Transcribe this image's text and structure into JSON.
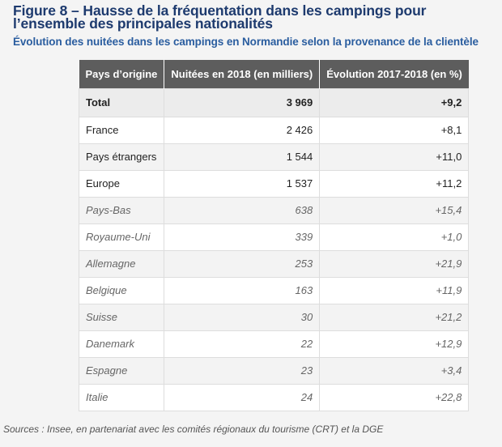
{
  "figure": {
    "title": "Figure 8 – Hausse de la fréquentation dans les campings pour l’ensemble des principales nationalités",
    "subtitle": "Évolution des nuitées dans les campings en Normandie selon la provenance de la clientèle"
  },
  "table": {
    "headers": [
      "Pays d’origine",
      "Nuitées en 2018 (en milliers)",
      "Évolution 2017-2018 (en %)"
    ],
    "rows": [
      {
        "origin": "Total",
        "nights": "3 969",
        "evolution": "+9,2"
      },
      {
        "origin": "France",
        "nights": "2 426",
        "evolution": "+8,1"
      },
      {
        "origin": "Pays étrangers",
        "nights": "1 544",
        "evolution": "+11,0"
      },
      {
        "origin": "Europe",
        "nights": "1 537",
        "evolution": "+11,2"
      },
      {
        "origin": "Pays-Bas",
        "nights": "638",
        "evolution": "+15,4"
      },
      {
        "origin": "Royaume-Uni",
        "nights": "339",
        "evolution": "+1,0"
      },
      {
        "origin": "Allemagne",
        "nights": "253",
        "evolution": "+21,9"
      },
      {
        "origin": "Belgique",
        "nights": "163",
        "evolution": "+11,9"
      },
      {
        "origin": "Suisse",
        "nights": "30",
        "evolution": "+21,2"
      },
      {
        "origin": "Danemark",
        "nights": "22",
        "evolution": "+12,9"
      },
      {
        "origin": "Espagne",
        "nights": "23",
        "evolution": "+3,4"
      },
      {
        "origin": "Italie",
        "nights": "24",
        "evolution": "+22,8"
      }
    ]
  },
  "source": "Sources : Insee, en partenariat avec les comités régionaux du tourisme (CRT) et la DGE",
  "colors": {
    "title": "#1d3a6e",
    "subtitle": "#2a5d9f",
    "header_bg": "#5d5d5d",
    "total_bg": "#ececec"
  }
}
